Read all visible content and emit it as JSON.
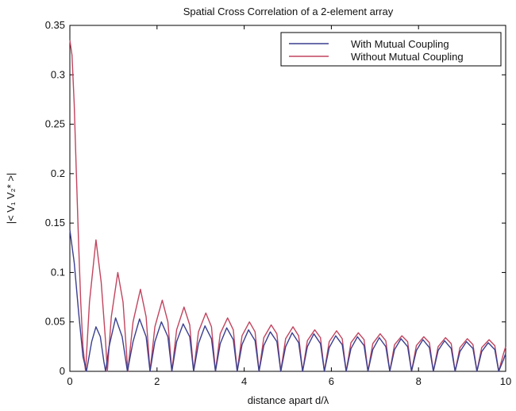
{
  "chart_data": {
    "type": "line",
    "title": "Spatial Cross Correlation of a 2-element array",
    "xlabel": "distance apart d/λ",
    "ylabel": "|< V₁ V₂* >|",
    "xlim": [
      0,
      10
    ],
    "ylim": [
      0,
      0.35
    ],
    "xticks": [
      0,
      2,
      4,
      6,
      8,
      10
    ],
    "yticks": [
      0,
      0.05,
      0.1,
      0.15,
      0.2,
      0.25,
      0.3,
      0.35
    ],
    "xtick_labels": [
      "0",
      "2",
      "4",
      "6",
      "8",
      "10"
    ],
    "ytick_labels": [
      "0",
      "0.05",
      "0.1",
      "0.15",
      "0.2",
      "0.25",
      "0.3",
      "0.35"
    ],
    "grid": false,
    "legend_position": "top-right",
    "series": [
      {
        "name": "With Mutual Coupling",
        "color": "#3a3f8f",
        "points": [
          [
            0,
            0.143
          ],
          [
            0.1,
            0.11
          ],
          [
            0.2,
            0.06
          ],
          [
            0.3,
            0.015
          ],
          [
            0.38,
            0
          ],
          [
            0.5,
            0.03
          ],
          [
            0.6,
            0.045
          ],
          [
            0.7,
            0.035
          ],
          [
            0.78,
            0.01
          ],
          [
            0.82,
            0
          ],
          [
            0.9,
            0.025
          ],
          [
            1.05,
            0.054
          ],
          [
            1.2,
            0.035
          ],
          [
            1.32,
            0
          ],
          [
            1.45,
            0.03
          ],
          [
            1.6,
            0.053
          ],
          [
            1.75,
            0.035
          ],
          [
            1.84,
            0
          ],
          [
            1.95,
            0.03
          ],
          [
            2.1,
            0.05
          ],
          [
            2.25,
            0.035
          ],
          [
            2.34,
            0
          ],
          [
            2.45,
            0.03
          ],
          [
            2.6,
            0.048
          ],
          [
            2.75,
            0.035
          ],
          [
            2.84,
            0
          ],
          [
            2.95,
            0.028
          ],
          [
            3.1,
            0.046
          ],
          [
            3.25,
            0.033
          ],
          [
            3.34,
            0
          ],
          [
            3.45,
            0.028
          ],
          [
            3.6,
            0.044
          ],
          [
            3.75,
            0.032
          ],
          [
            3.84,
            0
          ],
          [
            3.95,
            0.027
          ],
          [
            4.1,
            0.042
          ],
          [
            4.25,
            0.031
          ],
          [
            4.34,
            0
          ],
          [
            4.45,
            0.026
          ],
          [
            4.6,
            0.04
          ],
          [
            4.75,
            0.03
          ],
          [
            4.84,
            0
          ],
          [
            4.95,
            0.025
          ],
          [
            5.1,
            0.039
          ],
          [
            5.25,
            0.029
          ],
          [
            5.34,
            0
          ],
          [
            5.45,
            0.025
          ],
          [
            5.6,
            0.038
          ],
          [
            5.75,
            0.028
          ],
          [
            5.84,
            0
          ],
          [
            5.95,
            0.024
          ],
          [
            6.1,
            0.036
          ],
          [
            6.25,
            0.027
          ],
          [
            6.34,
            0
          ],
          [
            6.45,
            0.023
          ],
          [
            6.6,
            0.035
          ],
          [
            6.75,
            0.026
          ],
          [
            6.84,
            0
          ],
          [
            6.95,
            0.022
          ],
          [
            7.1,
            0.034
          ],
          [
            7.25,
            0.025
          ],
          [
            7.34,
            0
          ],
          [
            7.45,
            0.022
          ],
          [
            7.6,
            0.033
          ],
          [
            7.75,
            0.025
          ],
          [
            7.84,
            0
          ],
          [
            7.95,
            0.021
          ],
          [
            8.1,
            0.032
          ],
          [
            8.25,
            0.024
          ],
          [
            8.34,
            0
          ],
          [
            8.45,
            0.021
          ],
          [
            8.6,
            0.031
          ],
          [
            8.75,
            0.023
          ],
          [
            8.84,
            0
          ],
          [
            8.95,
            0.02
          ],
          [
            9.1,
            0.03
          ],
          [
            9.25,
            0.023
          ],
          [
            9.34,
            0
          ],
          [
            9.45,
            0.02
          ],
          [
            9.6,
            0.029
          ],
          [
            9.75,
            0.022
          ],
          [
            9.84,
            0
          ],
          [
            9.95,
            0.012
          ],
          [
            10,
            0.018
          ]
        ]
      },
      {
        "name": "Without Mutual Coupling",
        "color": "#c2445e",
        "points": [
          [
            0,
            0.335
          ],
          [
            0.05,
            0.32
          ],
          [
            0.1,
            0.27
          ],
          [
            0.15,
            0.2
          ],
          [
            0.2,
            0.13
          ],
          [
            0.25,
            0.07
          ],
          [
            0.3,
            0.025
          ],
          [
            0.36,
            0
          ],
          [
            0.45,
            0.07
          ],
          [
            0.6,
            0.133
          ],
          [
            0.72,
            0.09
          ],
          [
            0.82,
            0.03
          ],
          [
            0.86,
            0
          ],
          [
            0.95,
            0.055
          ],
          [
            1.1,
            0.1
          ],
          [
            1.22,
            0.07
          ],
          [
            1.33,
            0
          ],
          [
            1.45,
            0.05
          ],
          [
            1.62,
            0.083
          ],
          [
            1.75,
            0.055
          ],
          [
            1.84,
            0
          ],
          [
            1.95,
            0.045
          ],
          [
            2.12,
            0.072
          ],
          [
            2.25,
            0.05
          ],
          [
            2.34,
            0
          ],
          [
            2.45,
            0.042
          ],
          [
            2.62,
            0.065
          ],
          [
            2.75,
            0.047
          ],
          [
            2.84,
            0
          ],
          [
            2.95,
            0.04
          ],
          [
            3.12,
            0.059
          ],
          [
            3.25,
            0.045
          ],
          [
            3.34,
            0
          ],
          [
            3.45,
            0.038
          ],
          [
            3.62,
            0.054
          ],
          [
            3.75,
            0.042
          ],
          [
            3.84,
            0
          ],
          [
            3.95,
            0.036
          ],
          [
            4.12,
            0.05
          ],
          [
            4.25,
            0.04
          ],
          [
            4.34,
            0
          ],
          [
            4.45,
            0.034
          ],
          [
            4.62,
            0.047
          ],
          [
            4.75,
            0.038
          ],
          [
            4.84,
            0
          ],
          [
            4.95,
            0.033
          ],
          [
            5.12,
            0.045
          ],
          [
            5.25,
            0.036
          ],
          [
            5.34,
            0
          ],
          [
            5.45,
            0.031
          ],
          [
            5.62,
            0.042
          ],
          [
            5.75,
            0.034
          ],
          [
            5.84,
            0
          ],
          [
            5.95,
            0.03
          ],
          [
            6.12,
            0.041
          ],
          [
            6.25,
            0.033
          ],
          [
            6.34,
            0
          ],
          [
            6.45,
            0.029
          ],
          [
            6.62,
            0.039
          ],
          [
            6.75,
            0.032
          ],
          [
            6.84,
            0
          ],
          [
            6.95,
            0.028
          ],
          [
            7.12,
            0.038
          ],
          [
            7.25,
            0.031
          ],
          [
            7.34,
            0
          ],
          [
            7.45,
            0.027
          ],
          [
            7.62,
            0.036
          ],
          [
            7.75,
            0.03
          ],
          [
            7.84,
            0
          ],
          [
            7.95,
            0.026
          ],
          [
            8.12,
            0.035
          ],
          [
            8.25,
            0.029
          ],
          [
            8.34,
            0
          ],
          [
            8.45,
            0.025
          ],
          [
            8.62,
            0.034
          ],
          [
            8.75,
            0.028
          ],
          [
            8.84,
            0
          ],
          [
            8.95,
            0.024
          ],
          [
            9.12,
            0.033
          ],
          [
            9.25,
            0.027
          ],
          [
            9.34,
            0
          ],
          [
            9.45,
            0.024
          ],
          [
            9.62,
            0.032
          ],
          [
            9.75,
            0.026
          ],
          [
            9.84,
            0
          ],
          [
            9.95,
            0.018
          ],
          [
            10,
            0.025
          ]
        ]
      }
    ]
  }
}
